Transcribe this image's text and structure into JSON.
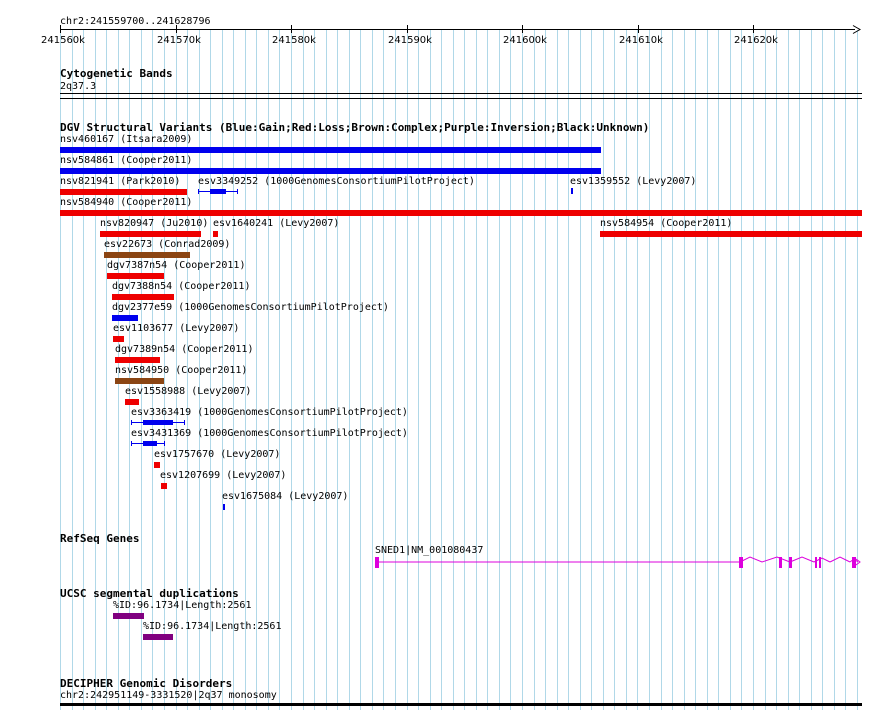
{
  "header": {
    "region": "chr2:241559700..241628796"
  },
  "axis": {
    "ticks": [
      "241560k",
      "241570k",
      "241580k",
      "241590k",
      "241600k",
      "241610k",
      "241620k"
    ]
  },
  "colors": {
    "gain": "#0000ee",
    "loss": "#ee0000",
    "complex": "#8b4513",
    "refseq": "#dd00dd",
    "segdup": "#800080",
    "grid": "#b0d8e8"
  },
  "tracks": {
    "cytoband": {
      "title": "Cytogenetic Bands",
      "band": "2q37.3"
    },
    "dgv": {
      "title": "DGV Structural Variants (Blue:Gain;Red:Loss;Brown:Complex;Purple:Inversion;Black:Unknown)",
      "variants": [
        {
          "label": "nsv460167 (Itsara2009)",
          "type": "gain"
        },
        {
          "label": "nsv584861 (Cooper2011)",
          "type": "gain"
        },
        {
          "label": "nsv821941 (Park2010)",
          "type": "loss"
        },
        {
          "label": "esv3349252 (1000GenomesConsortiumPilotProject)",
          "type": "gain"
        },
        {
          "label": "esv1359552 (Levy2007)",
          "type": "gain"
        },
        {
          "label": "nsv584940 (Cooper2011)",
          "type": "loss"
        },
        {
          "label": "nsv820947 (Ju2010)",
          "type": "loss"
        },
        {
          "label": "esv1640241 (Levy2007)",
          "type": "loss"
        },
        {
          "label": "nsv584954 (Cooper2011)",
          "type": "loss"
        },
        {
          "label": "esv22673 (Conrad2009)",
          "type": "complex"
        },
        {
          "label": "dgv7387n54 (Cooper2011)",
          "type": "loss"
        },
        {
          "label": "dgv7388n54 (Cooper2011)",
          "type": "loss"
        },
        {
          "label": "dgv2377e59 (1000GenomesConsortiumPilotProject)",
          "type": "gain"
        },
        {
          "label": "esv1103677 (Levy2007)",
          "type": "loss"
        },
        {
          "label": "dgv7389n54 (Cooper2011)",
          "type": "loss"
        },
        {
          "label": "nsv584950 (Cooper2011)",
          "type": "complex"
        },
        {
          "label": "esv1558988 (Levy2007)",
          "type": "loss"
        },
        {
          "label": "esv3363419 (1000GenomesConsortiumPilotProject)",
          "type": "gain"
        },
        {
          "label": "esv3431369 (1000GenomesConsortiumPilotProject)",
          "type": "gain"
        },
        {
          "label": "esv1757670 (Levy2007)",
          "type": "loss"
        },
        {
          "label": "esv1207699 (Levy2007)",
          "type": "loss"
        },
        {
          "label": "esv1675084 (Levy2007)",
          "type": "gain"
        }
      ]
    },
    "refseq": {
      "title": "RefSeq Genes",
      "gene": "SNED1|NM_001080437"
    },
    "segdup": {
      "title": "UCSC segmental duplications",
      "items": [
        {
          "label": "%ID:96.1734|Length:2561"
        },
        {
          "label": "%ID:96.1734|Length:2561"
        }
      ]
    },
    "decipher": {
      "title": "DECIPHER Genomic Disorders",
      "item": "chr2:242951149-3331520|2q37 monosomy"
    }
  }
}
